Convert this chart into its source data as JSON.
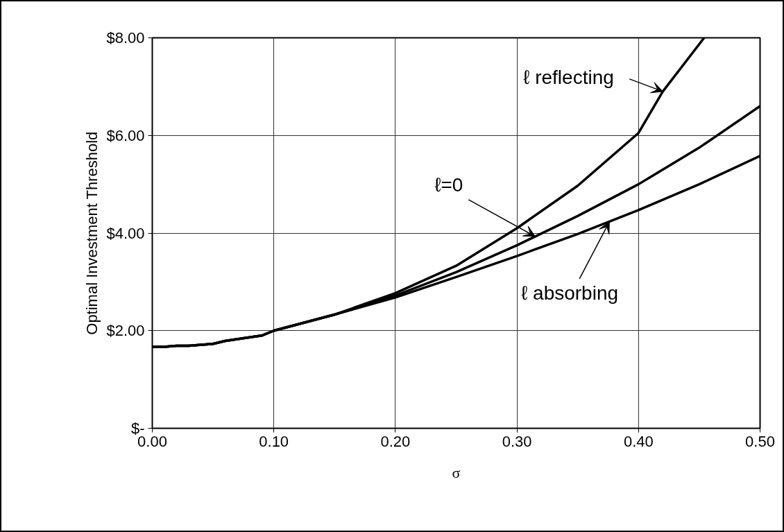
{
  "chart_data": {
    "type": "line",
    "xlabel": "σ",
    "ylabel": "Optimal Investment Threshold",
    "xlim": [
      0,
      0.5
    ],
    "ylim": [
      0,
      8
    ],
    "xticks": [
      {
        "value": 0,
        "label": "0.00"
      },
      {
        "value": 0.1,
        "label": "0.10"
      },
      {
        "value": 0.2,
        "label": "0.20"
      },
      {
        "value": 0.3,
        "label": "0.30"
      },
      {
        "value": 0.4,
        "label": "0.40"
      },
      {
        "value": 0.5,
        "label": "0.50"
      }
    ],
    "yticks": [
      {
        "value": 0,
        "label": "$-"
      },
      {
        "value": 2,
        "label": "$2.00"
      },
      {
        "value": 4,
        "label": "$4.00"
      },
      {
        "value": 6,
        "label": "$6.00"
      },
      {
        "value": 8,
        "label": "$8.00"
      }
    ],
    "grid": true,
    "marker": "none",
    "line_style": "solid",
    "series": [
      {
        "color": "#000000",
        "x": [
          0,
          0.01,
          0.02,
          0.03,
          0.05,
          0.06,
          0.09,
          0.1,
          0.15,
          0.2,
          0.25,
          0.3,
          0.35,
          0.4,
          0.42,
          0.454
        ],
        "values": [
          1.67,
          1.67,
          1.69,
          1.69,
          1.73,
          1.79,
          1.9,
          2.0,
          2.33,
          2.77,
          3.33,
          4.1,
          4.97,
          6.05,
          6.9,
          8.0
        ]
      },
      {
        "color": "#000000",
        "x": [
          0,
          0.01,
          0.02,
          0.03,
          0.05,
          0.06,
          0.09,
          0.1,
          0.15,
          0.2,
          0.25,
          0.3,
          0.35,
          0.4,
          0.45,
          0.5
        ],
        "values": [
          1.67,
          1.67,
          1.69,
          1.69,
          1.73,
          1.79,
          1.9,
          2.0,
          2.33,
          2.72,
          3.2,
          3.75,
          4.35,
          5.0,
          5.75,
          6.6
        ]
      },
      {
        "color": "#000000",
        "x": [
          0,
          0.01,
          0.02,
          0.03,
          0.05,
          0.06,
          0.09,
          0.1,
          0.15,
          0.2,
          0.25,
          0.3,
          0.35,
          0.4,
          0.45,
          0.5
        ],
        "values": [
          1.67,
          1.67,
          1.69,
          1.69,
          1.73,
          1.79,
          1.9,
          2.0,
          2.33,
          2.68,
          3.1,
          3.53,
          3.98,
          4.47,
          5.0,
          5.58
        ]
      }
    ],
    "annotations": [
      {
        "text": "ℓ reflecting",
        "x": 0.42,
        "y": 6.9
      },
      {
        "text": "ℓ=0",
        "x": 0.315,
        "y": 3.93
      },
      {
        "text": "ℓ absorbing",
        "x": 0.376,
        "y": 4.23
      }
    ]
  }
}
